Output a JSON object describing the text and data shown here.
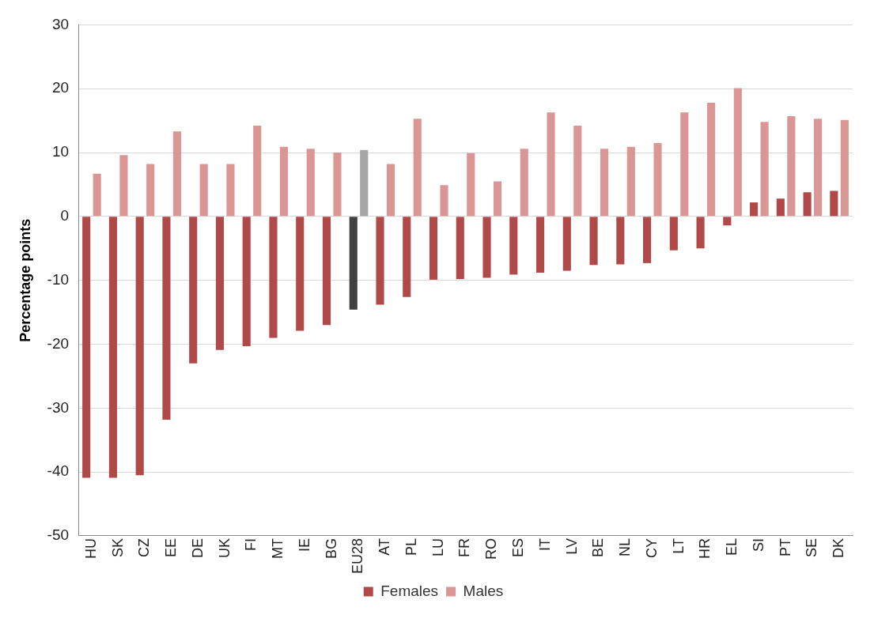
{
  "chart_data": {
    "type": "bar",
    "ylabel": "Percentage points",
    "categories": [
      "HU",
      "SK",
      "CZ",
      "EE",
      "DE",
      "UK",
      "FI",
      "MT",
      "IE",
      "BG",
      "EU28",
      "AT",
      "PL",
      "LU",
      "FR",
      "RO",
      "ES",
      "IT",
      "LV",
      "BE",
      "NL",
      "CY",
      "LT",
      "HR",
      "EL",
      "SI",
      "PT",
      "SE",
      "DK"
    ],
    "series": [
      {
        "name": "Females",
        "color": "#b04a48",
        "colors": [
          "#b04a48",
          "#b04a48",
          "#b04a48",
          "#b04a48",
          "#b04a48",
          "#b04a48",
          "#b04a48",
          "#b04a48",
          "#b04a48",
          "#b04a48",
          "#404040",
          "#b04a48",
          "#b04a48",
          "#b04a48",
          "#b04a48",
          "#b04a48",
          "#b04a48",
          "#b04a48",
          "#b04a48",
          "#b04a48",
          "#b04a48",
          "#b04a48",
          "#b04a48",
          "#b04a48",
          "#b04a48",
          "#b04a48",
          "#b04a48",
          "#b04a48",
          "#b04a48"
        ],
        "values": [
          -40.9,
          -40.9,
          -40.5,
          -31.8,
          -23.0,
          -20.9,
          -20.3,
          -19.0,
          -17.9,
          -17.0,
          -14.6,
          -13.8,
          -12.6,
          -9.9,
          -9.8,
          -9.6,
          -9.1,
          -8.8,
          -8.5,
          -7.6,
          -7.5,
          -7.3,
          -5.3,
          -5.0,
          -1.4,
          2.2,
          2.8,
          3.8,
          4.0
        ]
      },
      {
        "name": "Males",
        "color": "#d99694",
        "colors": [
          "#d99694",
          "#d99694",
          "#d99694",
          "#d99694",
          "#d99694",
          "#d99694",
          "#d99694",
          "#d99694",
          "#d99694",
          "#d99694",
          "#a6a6a6",
          "#d99694",
          "#d99694",
          "#d99694",
          "#d99694",
          "#d99694",
          "#d99694",
          "#d99694",
          "#d99694",
          "#d99694",
          "#d99694",
          "#d99694",
          "#d99694",
          "#d99694",
          "#d99694",
          "#d99694",
          "#d99694",
          "#d99694",
          "#d99694"
        ],
        "values": [
          6.7,
          9.6,
          8.2,
          13.3,
          8.2,
          8.2,
          14.2,
          10.9,
          10.6,
          10.0,
          10.4,
          8.2,
          15.3,
          4.9,
          9.9,
          5.5,
          10.6,
          16.3,
          14.2,
          10.6,
          10.9,
          11.5,
          16.3,
          17.8,
          20.1,
          14.8,
          15.7,
          15.3,
          15.1
        ]
      }
    ],
    "ylim": [
      -50,
      30
    ],
    "yticks": [
      -50,
      -40,
      -30,
      -20,
      -10,
      0,
      10,
      20,
      30
    ],
    "grid": "y",
    "legend": "bottom"
  }
}
